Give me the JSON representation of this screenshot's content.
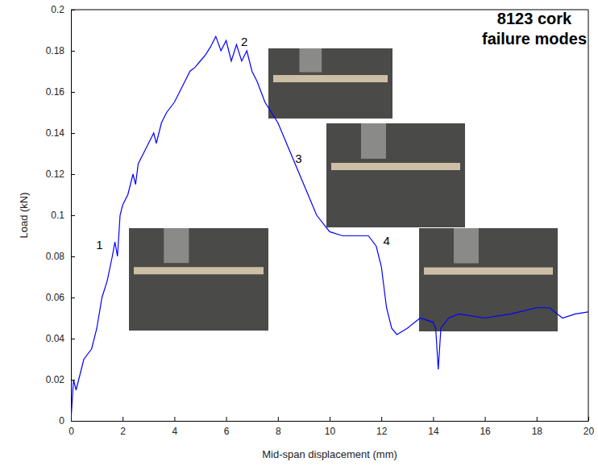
{
  "chart_data": {
    "type": "line",
    "title": "8123 cork failure modes",
    "x_label": "Mid-span displacement (mm)",
    "y_label": "Load (kN)",
    "x": [
      0,
      0.1,
      0.2,
      0.3,
      0.5,
      0.8,
      1.0,
      1.2,
      1.4,
      1.6,
      1.7,
      1.8,
      1.9,
      2.0,
      2.2,
      2.4,
      2.5,
      2.6,
      2.8,
      3.0,
      3.2,
      3.3,
      3.5,
      3.7,
      4.0,
      4.2,
      4.4,
      4.6,
      4.8,
      5.0,
      5.2,
      5.4,
      5.6,
      5.8,
      6.0,
      6.2,
      6.4,
      6.6,
      6.8,
      7.0,
      7.2,
      7.5,
      8.0,
      8.5,
      9.0,
      9.5,
      10.0,
      10.5,
      11.0,
      11.5,
      11.8,
      12.0,
      12.2,
      12.4,
      12.6,
      13.0,
      13.5,
      14.0,
      14.1,
      14.2,
      14.3,
      14.6,
      15.0,
      16.0,
      17.0,
      18.0,
      18.5,
      19.0,
      19.5,
      20.0
    ],
    "series": [
      {
        "color": "#0000ff",
        "line_style": "solid",
        "marker": "none",
        "values": [
          0,
          0.02,
          0.015,
          0.02,
          0.03,
          0.035,
          0.045,
          0.06,
          0.068,
          0.08,
          0.087,
          0.08,
          0.1,
          0.105,
          0.11,
          0.12,
          0.115,
          0.125,
          0.13,
          0.135,
          0.14,
          0.135,
          0.145,
          0.15,
          0.155,
          0.16,
          0.165,
          0.17,
          0.172,
          0.175,
          0.178,
          0.182,
          0.187,
          0.18,
          0.185,
          0.175,
          0.183,
          0.175,
          0.18,
          0.17,
          0.165,
          0.155,
          0.145,
          0.13,
          0.115,
          0.1,
          0.092,
          0.09,
          0.09,
          0.09,
          0.085,
          0.075,
          0.055,
          0.045,
          0.042,
          0.045,
          0.05,
          0.048,
          0.045,
          0.025,
          0.045,
          0.05,
          0.052,
          0.05,
          0.052,
          0.055,
          0.055,
          0.05,
          0.052,
          0.053
        ]
      }
    ],
    "xlim": [
      0,
      20
    ],
    "xticks": [
      0,
      2,
      4,
      6,
      8,
      10,
      12,
      14,
      16,
      18,
      20
    ],
    "ylim": [
      0,
      0.2
    ],
    "yticks": [
      0,
      0.02,
      0.04,
      0.06,
      0.08,
      0.1,
      0.12,
      0.14,
      0.16,
      0.18,
      0.2
    ],
    "grid": false,
    "annotations": [
      {
        "text": "1",
        "x": 1.1,
        "y": 0.085
      },
      {
        "text": "2",
        "x": 6.7,
        "y": 0.184
      },
      {
        "text": "3",
        "x": 8.8,
        "y": 0.127
      },
      {
        "text": "4",
        "x": 12.2,
        "y": 0.087
      }
    ]
  }
}
